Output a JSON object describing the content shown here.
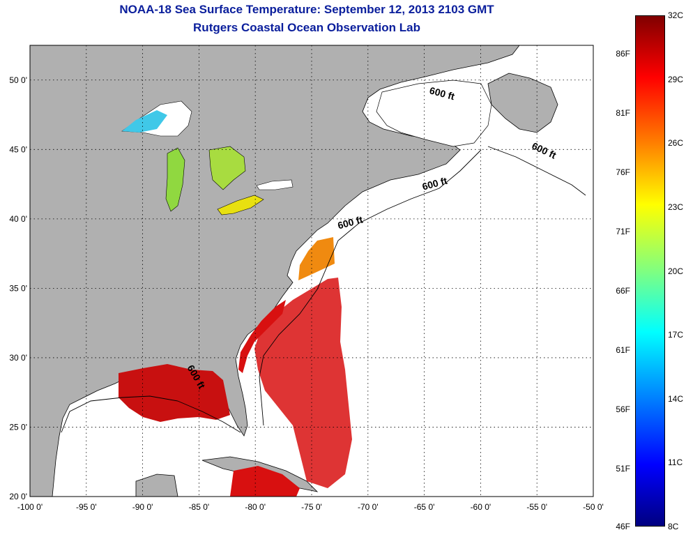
{
  "title_line1": "NOAA-18 Sea Surface Temperature:  September 12, 2013 2103 GMT",
  "title_line2": "Rutgers Coastal Ocean Observation Lab",
  "map": {
    "lon_range": [
      -100,
      -50
    ],
    "lat_range": [
      20,
      52.5
    ],
    "grid": true,
    "x_ticks": [
      "-100 0'",
      "-95 0'",
      "-90 0'",
      "-85 0'",
      "-80 0'",
      "-75 0'",
      "-70 0'",
      "-65 0'",
      "-60 0'",
      "-55 0'",
      "-50 0'"
    ],
    "y_ticks": [
      "20 0'",
      "25 0'",
      "30 0'",
      "35 0'",
      "40 0'",
      "45 0'",
      "50 0'"
    ],
    "colors": {
      "land": "#b0b0b0",
      "ocean_no_data": "#ffffff",
      "gulf_warm": "#d81010",
      "coastal_orange": "#f08a10",
      "lake_yellow": "#e8e010",
      "lake_green": "#90d840",
      "lake_cyan": "#40c8e8"
    },
    "contour_labels": [
      {
        "text": "600 ft",
        "lon": -63.5,
        "lat": 48.8
      },
      {
        "text": "600 ft",
        "lon": -54.5,
        "lat": 44.7
      },
      {
        "text": "600 ft",
        "lon": -64.0,
        "lat": 42.3
      },
      {
        "text": "600 ft",
        "lon": -71.5,
        "lat": 39.5
      },
      {
        "text": "600 ft",
        "lon": -85.5,
        "lat": 28.5
      }
    ]
  },
  "colorbar": {
    "min_c": 8,
    "max_c": 32,
    "fahrenheit_labels": [
      "86F",
      "81F",
      "76F",
      "71F",
      "66F",
      "61F",
      "56F",
      "51F",
      "46F"
    ],
    "celsius_labels": [
      "32C",
      "29C",
      "26C",
      "23C",
      "20C",
      "17C",
      "14C",
      "11C",
      "8C"
    ]
  }
}
